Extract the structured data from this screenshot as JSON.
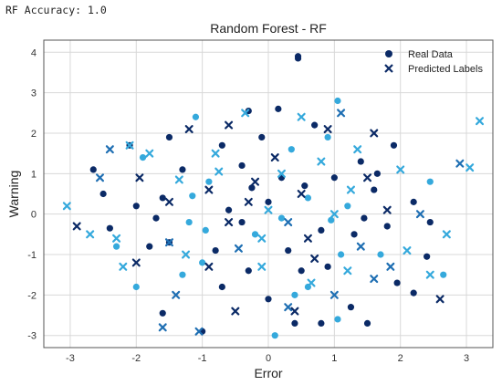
{
  "console": {
    "text": "RF Accuracy: 1.0"
  },
  "colors": {
    "dark_blue": "#0b2a66",
    "light_blue": "#35a9dc",
    "mid_blue": "#1f6fb3",
    "pale": "#dbe9f4",
    "grid": "#d8d8d8",
    "frame": "#555555"
  },
  "chart_data": {
    "type": "scatter",
    "title": "Random Forest - RF",
    "xlabel": "Error",
    "ylabel": "Warning",
    "xlim": [
      -3.4,
      3.4
    ],
    "ylim": [
      -3.3,
      4.3
    ],
    "xticks": [
      -3,
      -2,
      -1,
      0,
      1,
      2,
      3
    ],
    "yticks": [
      -3,
      -2,
      -1,
      0,
      1,
      2,
      3,
      4
    ],
    "grid": true,
    "legend_placement": "top-right",
    "series": [
      {
        "name": "Real Data",
        "marker": "circle",
        "points": [
          [
            0.45,
            3.9
          ],
          [
            0.45,
            3.85
          ],
          [
            1.05,
            2.8
          ],
          [
            0.15,
            2.6
          ],
          [
            -0.3,
            2.55
          ],
          [
            -1.1,
            2.4
          ],
          [
            -2.1,
            1.7
          ],
          [
            -2.65,
            1.1
          ],
          [
            -1.9,
            1.4
          ],
          [
            -1.5,
            1.9
          ],
          [
            1.9,
            1.7
          ],
          [
            2.45,
            0.8
          ],
          [
            2.45,
            -0.2
          ],
          [
            2.4,
            -1.05
          ],
          [
            2.65,
            -1.5
          ],
          [
            2.2,
            -1.95
          ],
          [
            1.95,
            -1.7
          ],
          [
            1.7,
            -1.0
          ],
          [
            1.3,
            -0.5
          ],
          [
            0.9,
            -1.3
          ],
          [
            0.6,
            -1.8
          ],
          [
            0.0,
            -2.1
          ],
          [
            -0.7,
            -1.8
          ],
          [
            -1.3,
            -1.5
          ],
          [
            -1.8,
            -0.8
          ],
          [
            -2.4,
            -0.35
          ],
          [
            -2.3,
            -0.8
          ],
          [
            -1.6,
            -2.45
          ],
          [
            -1.0,
            -2.9
          ],
          [
            0.1,
            -3.0
          ],
          [
            0.4,
            -2.7
          ],
          [
            0.8,
            -2.7
          ],
          [
            1.05,
            -2.6
          ],
          [
            1.5,
            -2.7
          ],
          [
            1.25,
            -2.3
          ],
          [
            0.4,
            -2.0
          ],
          [
            -0.3,
            -1.4
          ],
          [
            -0.8,
            -0.9
          ],
          [
            -1.2,
            -0.2
          ],
          [
            -1.6,
            0.4
          ],
          [
            -2.0,
            0.2
          ],
          [
            -0.9,
            0.8
          ],
          [
            -0.4,
            1.2
          ],
          [
            0.2,
            0.9
          ],
          [
            0.6,
            0.4
          ],
          [
            1.0,
            0.9
          ],
          [
            1.4,
            1.3
          ],
          [
            1.2,
            0.2
          ],
          [
            0.8,
            -0.4
          ],
          [
            0.3,
            -0.9
          ],
          [
            -0.2,
            -0.5
          ],
          [
            -0.6,
            0.1
          ],
          [
            0.0,
            0.3
          ],
          [
            0.35,
            1.6
          ],
          [
            -0.7,
            1.7
          ],
          [
            -1.3,
            1.1
          ],
          [
            0.9,
            1.9
          ],
          [
            1.6,
            0.6
          ],
          [
            1.8,
            -0.3
          ],
          [
            -1.0,
            -1.2
          ],
          [
            -1.5,
            -0.7
          ],
          [
            0.5,
            -1.4
          ],
          [
            1.1,
            -1.0
          ],
          [
            -0.1,
            1.9
          ],
          [
            0.7,
            2.2
          ],
          [
            -2.0,
            -1.8
          ],
          [
            -2.5,
            0.5
          ],
          [
            2.2,
            0.3
          ],
          [
            0.2,
            -0.1
          ],
          [
            -0.4,
            -0.2
          ],
          [
            0.55,
            0.7
          ],
          [
            -0.95,
            -0.4
          ],
          [
            1.45,
            -0.1
          ],
          [
            -0.25,
            0.65
          ],
          [
            0.95,
            -0.15
          ],
          [
            -1.7,
            -0.1
          ],
          [
            1.65,
            1.0
          ],
          [
            -1.15,
            0.45
          ]
        ]
      },
      {
        "name": "Predicted Labels",
        "marker": "x",
        "points": [
          [
            -2.1,
            1.7
          ],
          [
            3.2,
            2.3
          ],
          [
            2.9,
            1.25
          ],
          [
            3.05,
            1.15
          ],
          [
            2.45,
            -1.5
          ],
          [
            2.7,
            -0.5
          ],
          [
            -3.05,
            0.2
          ],
          [
            -2.7,
            -0.5
          ],
          [
            -2.9,
            -0.3
          ],
          [
            -1.2,
            2.1
          ],
          [
            -0.35,
            2.5
          ],
          [
            0.5,
            2.4
          ],
          [
            1.1,
            2.5
          ],
          [
            1.6,
            2.0
          ],
          [
            2.0,
            1.1
          ],
          [
            2.3,
            0.0
          ],
          [
            2.1,
            -0.9
          ],
          [
            1.6,
            -1.6
          ],
          [
            1.0,
            -2.0
          ],
          [
            0.3,
            -2.3
          ],
          [
            -0.5,
            -2.4
          ],
          [
            -1.4,
            -2.0
          ],
          [
            -2.0,
            -1.2
          ],
          [
            -2.3,
            -0.6
          ],
          [
            -2.55,
            0.9
          ],
          [
            -1.8,
            1.5
          ],
          [
            -0.8,
            1.5
          ],
          [
            0.1,
            1.4
          ],
          [
            0.8,
            1.3
          ],
          [
            1.5,
            0.9
          ],
          [
            1.8,
            0.1
          ],
          [
            1.4,
            -0.8
          ],
          [
            0.7,
            -1.1
          ],
          [
            -0.1,
            -1.3
          ],
          [
            -0.9,
            -1.3
          ],
          [
            -1.5,
            -0.7
          ],
          [
            -1.5,
            0.3
          ],
          [
            -0.9,
            0.6
          ],
          [
            -0.2,
            0.8
          ],
          [
            0.5,
            0.5
          ],
          [
            1.0,
            0.0
          ],
          [
            0.6,
            -0.6
          ],
          [
            -0.1,
            -0.6
          ],
          [
            -0.6,
            -0.2
          ],
          [
            0.0,
            0.1
          ],
          [
            -0.3,
            0.3
          ],
          [
            0.3,
            -0.2
          ],
          [
            -1.6,
            -2.8
          ],
          [
            -1.05,
            -2.9
          ],
          [
            0.4,
            -2.4
          ],
          [
            1.2,
            -1.4
          ],
          [
            2.6,
            -2.1
          ],
          [
            -2.4,
            1.6
          ],
          [
            -1.95,
            0.9
          ],
          [
            0.9,
            2.1
          ],
          [
            -0.6,
            2.2
          ],
          [
            1.35,
            1.6
          ],
          [
            -1.25,
            -1.0
          ],
          [
            1.85,
            -1.3
          ],
          [
            -2.2,
            -1.3
          ],
          [
            0.2,
            1.0
          ],
          [
            -0.45,
            -0.85
          ],
          [
            1.25,
            0.6
          ],
          [
            -1.35,
            0.85
          ],
          [
            0.65,
            -1.7
          ],
          [
            -0.75,
            1.05
          ]
        ]
      }
    ]
  }
}
